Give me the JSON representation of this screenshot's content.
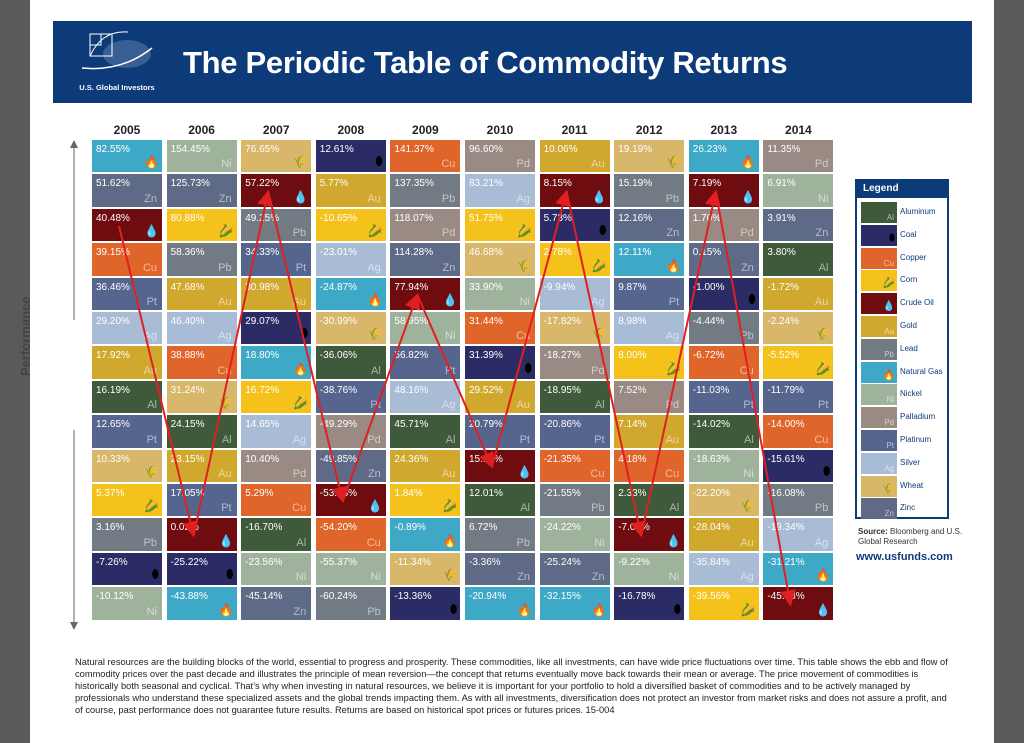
{
  "header": {
    "title": "The Periodic Table of Commodity Returns",
    "logo_text": "U.S. Global Investors"
  },
  "yaxis_label": "Performance",
  "legend": {
    "title": "Legend",
    "items": [
      {
        "sym": "Al",
        "name": "Aluminum",
        "color": "#3f5a3a",
        "icon": "",
        "icon_name": ""
      },
      {
        "sym": "",
        "name": "Coal",
        "color": "#2b2c66",
        "icon": "⬮",
        "icon_name": "coal-icon"
      },
      {
        "sym": "Cu",
        "name": "Copper",
        "color": "#e0652a",
        "icon": "",
        "icon_name": ""
      },
      {
        "sym": "",
        "name": "Corn",
        "color": "#f4c21b",
        "icon": "🌽",
        "icon_name": "corn-icon"
      },
      {
        "sym": "",
        "name": "Crude Oil",
        "color": "#6e0c0f",
        "icon": "💧",
        "icon_name": "oil-drop-icon"
      },
      {
        "sym": "Au",
        "name": "Gold",
        "color": "#d0a82e",
        "icon": "",
        "icon_name": ""
      },
      {
        "sym": "Pb",
        "name": "Lead",
        "color": "#727b84",
        "icon": "",
        "icon_name": ""
      },
      {
        "sym": "",
        "name": "Natural Gas",
        "color": "#3ea9c7",
        "icon": "🔥",
        "icon_name": "flame-icon"
      },
      {
        "sym": "Ni",
        "name": "Nickel",
        "color": "#9fb39c",
        "icon": "",
        "icon_name": ""
      },
      {
        "sym": "Pd",
        "name": "Palladium",
        "color": "#9a8a84",
        "icon": "",
        "icon_name": ""
      },
      {
        "sym": "Pt",
        "name": "Platinum",
        "color": "#56658e",
        "icon": "",
        "icon_name": ""
      },
      {
        "sym": "Ag",
        "name": "Silver",
        "color": "#a9bcd5",
        "icon": "",
        "icon_name": ""
      },
      {
        "sym": "",
        "name": "Wheat",
        "color": "#d8b66a",
        "icon": "🌾",
        "icon_name": "wheat-icon"
      },
      {
        "sym": "Zn",
        "name": "Zinc",
        "color": "#5e6a86",
        "icon": "",
        "icon_name": ""
      }
    ]
  },
  "source": {
    "label": "Source:",
    "text": "Bloomberg and U.S. Global Research"
  },
  "url": "www.usfunds.com",
  "footnote": "Natural resources are the building blocks of the world, essential to progress and prosperity. These commodities, like all investments, can have wide price fluctuations over time. This table shows the ebb and flow of commodity prices over the past decade and illustrates the principle of mean reversion—the concept that returns eventually move back towards their mean or average. The price movement of commodities is historically both seasonal and cyclical. That’s why when investing in natural resources, we believe it is important for your portfolio to hold a diversified basket of commodities and to be actively managed by professionals who understand these specialized assets and the global trends impacting them. As with all investments, diversification does not protect an investor from market risks and does not assure a profit, and of course, past performance does not guarantee future results. Returns are based on historical spot prices or futures prices. 15-004",
  "colors": {
    "Aluminum": "#3f5a3a",
    "Coal": "#2b2c66",
    "Copper": "#e0652a",
    "Corn": "#f4c21b",
    "Crude Oil": "#6e0c0f",
    "Gold": "#d0a82e",
    "Lead": "#727b84",
    "Natural Gas": "#3ea9c7",
    "Nickel": "#9fb39c",
    "Palladium": "#9a8a84",
    "Platinum": "#56658e",
    "Silver": "#a9bcd5",
    "Wheat": "#d8b66a",
    "Zinc": "#5e6a86",
    "arrow": "#e02020"
  },
  "chart_data": {
    "type": "table",
    "title": "The Periodic Table of Commodity Returns",
    "ylabel": "Performance",
    "highlight_series": "Crude Oil",
    "years": [
      {
        "year": "2005",
        "cells": [
          {
            "c": "Natural Gas",
            "v": "82.55%"
          },
          {
            "c": "Zinc",
            "v": "51.62%"
          },
          {
            "c": "Crude Oil",
            "v": "40.48%"
          },
          {
            "c": "Copper",
            "v": "39.15%"
          },
          {
            "c": "Platinum",
            "v": "36.46%"
          },
          {
            "c": "Silver",
            "v": "29.20%"
          },
          {
            "c": "Gold",
            "v": "17.92%"
          },
          {
            "c": "Aluminum",
            "v": "16.19%"
          },
          {
            "c": "Platinum",
            "v": "12.65%"
          },
          {
            "c": "Wheat",
            "v": "10.33%"
          },
          {
            "c": "Corn",
            "v": "5.37%"
          },
          {
            "c": "Lead",
            "v": "3.16%"
          },
          {
            "c": "Coal",
            "v": "-7.26%"
          },
          {
            "c": "Nickel",
            "v": "-10.12%"
          }
        ]
      },
      {
        "year": "2006",
        "cells": [
          {
            "c": "Nickel",
            "v": "154.45%"
          },
          {
            "c": "Zinc",
            "v": "125.73%"
          },
          {
            "c": "Corn",
            "v": "80.88%"
          },
          {
            "c": "Lead",
            "v": "58.36%"
          },
          {
            "c": "Gold",
            "v": "47.68%"
          },
          {
            "c": "Silver",
            "v": "46.40%"
          },
          {
            "c": "Copper",
            "v": "38.88%"
          },
          {
            "c": "Wheat",
            "v": "31.24%"
          },
          {
            "c": "Aluminum",
            "v": "24.15%"
          },
          {
            "c": "Gold",
            "v": "23.15%"
          },
          {
            "c": "Platinum",
            "v": "17.05%"
          },
          {
            "c": "Crude Oil",
            "v": "0.02%"
          },
          {
            "c": "Coal",
            "v": "-25.22%"
          },
          {
            "c": "Natural Gas",
            "v": "-43.88%"
          }
        ]
      },
      {
        "year": "2007",
        "cells": [
          {
            "c": "Wheat",
            "v": "76.65%"
          },
          {
            "c": "Crude Oil",
            "v": "57.22%"
          },
          {
            "c": "Lead",
            "v": "49.25%"
          },
          {
            "c": "Platinum",
            "v": "34.33%"
          },
          {
            "c": "Gold",
            "v": "30.98%"
          },
          {
            "c": "Coal",
            "v": "29.07%"
          },
          {
            "c": "Natural Gas",
            "v": "18.80%"
          },
          {
            "c": "Corn",
            "v": "16.72%"
          },
          {
            "c": "Silver",
            "v": "14.65%"
          },
          {
            "c": "Palladium",
            "v": "10.40%"
          },
          {
            "c": "Copper",
            "v": "5.29%"
          },
          {
            "c": "Aluminum",
            "v": "-16.70%"
          },
          {
            "c": "Nickel",
            "v": "-23.56%"
          },
          {
            "c": "Zinc",
            "v": "-45.14%"
          }
        ]
      },
      {
        "year": "2008",
        "cells": [
          {
            "c": "Coal",
            "v": "12.61%"
          },
          {
            "c": "Gold",
            "v": "5.77%"
          },
          {
            "c": "Corn",
            "v": "-10.65%"
          },
          {
            "c": "Silver",
            "v": "-23.01%"
          },
          {
            "c": "Natural Gas",
            "v": "-24.87%"
          },
          {
            "c": "Wheat",
            "v": "-30.99%"
          },
          {
            "c": "Aluminum",
            "v": "-36.06%"
          },
          {
            "c": "Platinum",
            "v": "-38.76%"
          },
          {
            "c": "Palladium",
            "v": "-49.29%"
          },
          {
            "c": "Zinc",
            "v": "-49.85%"
          },
          {
            "c": "Crude Oil",
            "v": "-53.53%"
          },
          {
            "c": "Copper",
            "v": "-54.20%"
          },
          {
            "c": "Nickel",
            "v": "-55.37%"
          },
          {
            "c": "Lead",
            "v": "-60.24%"
          }
        ]
      },
      {
        "year": "2009",
        "cells": [
          {
            "c": "Copper",
            "v": "141.37%"
          },
          {
            "c": "Lead",
            "v": "137.35%"
          },
          {
            "c": "Palladium",
            "v": "118.07%"
          },
          {
            "c": "Zinc",
            "v": "114.28%"
          },
          {
            "c": "Crude Oil",
            "v": "77.94%"
          },
          {
            "c": "Nickel",
            "v": "58.95%"
          },
          {
            "c": "Platinum",
            "v": "56.82%"
          },
          {
            "c": "Silver",
            "v": "48.16%"
          },
          {
            "c": "Aluminum",
            "v": "45.71%"
          },
          {
            "c": "Gold",
            "v": "24.36%"
          },
          {
            "c": "Corn",
            "v": "1.84%"
          },
          {
            "c": "Natural Gas",
            "v": "-0.89%"
          },
          {
            "c": "Wheat",
            "v": "-11.34%"
          },
          {
            "c": "Coal",
            "v": "-13.36%"
          }
        ]
      },
      {
        "year": "2010",
        "cells": [
          {
            "c": "Palladium",
            "v": "96.60%"
          },
          {
            "c": "Silver",
            "v": "83.21%"
          },
          {
            "c": "Corn",
            "v": "51.75%"
          },
          {
            "c": "Wheat",
            "v": "46.68%"
          },
          {
            "c": "Nickel",
            "v": "33.90%"
          },
          {
            "c": "Copper",
            "v": "31.44%"
          },
          {
            "c": "Coal",
            "v": "31.39%"
          },
          {
            "c": "Gold",
            "v": "29.52%"
          },
          {
            "c": "Platinum",
            "v": "20.79%"
          },
          {
            "c": "Crude Oil",
            "v": "15.15%"
          },
          {
            "c": "Aluminum",
            "v": "12.01%"
          },
          {
            "c": "Lead",
            "v": "6.72%"
          },
          {
            "c": "Zinc",
            "v": "-3.36%"
          },
          {
            "c": "Natural Gas",
            "v": "-20.94%"
          }
        ]
      },
      {
        "year": "2011",
        "cells": [
          {
            "c": "Gold",
            "v": "10.06%"
          },
          {
            "c": "Crude Oil",
            "v": "8.15%"
          },
          {
            "c": "Coal",
            "v": "5.73%"
          },
          {
            "c": "Corn",
            "v": "2.78%"
          },
          {
            "c": "Silver",
            "v": "-9.94%"
          },
          {
            "c": "Wheat",
            "v": "-17.82%"
          },
          {
            "c": "Palladium",
            "v": "-18.27%"
          },
          {
            "c": "Aluminum",
            "v": "-18.95%"
          },
          {
            "c": "Platinum",
            "v": "-20.86%"
          },
          {
            "c": "Copper",
            "v": "-21.35%"
          },
          {
            "c": "Lead",
            "v": "-21.55%"
          },
          {
            "c": "Nickel",
            "v": "-24.22%"
          },
          {
            "c": "Zinc",
            "v": "-25.24%"
          },
          {
            "c": "Natural Gas",
            "v": "-32.15%"
          }
        ]
      },
      {
        "year": "2012",
        "cells": [
          {
            "c": "Wheat",
            "v": "19.19%"
          },
          {
            "c": "Lead",
            "v": "15.19%"
          },
          {
            "c": "Zinc",
            "v": "12.16%"
          },
          {
            "c": "Natural Gas",
            "v": "12.11%"
          },
          {
            "c": "Platinum",
            "v": "9.87%"
          },
          {
            "c": "Silver",
            "v": "8.98%"
          },
          {
            "c": "Corn",
            "v": "8.00%"
          },
          {
            "c": "Palladium",
            "v": "7.52%"
          },
          {
            "c": "Gold",
            "v": "7.14%"
          },
          {
            "c": "Copper",
            "v": "4.18%"
          },
          {
            "c": "Aluminum",
            "v": "2.33%"
          },
          {
            "c": "Crude Oil",
            "v": "-7.09%"
          },
          {
            "c": "Nickel",
            "v": "-9.22%"
          },
          {
            "c": "Coal",
            "v": "-16.78%"
          }
        ]
      },
      {
        "year": "2013",
        "cells": [
          {
            "c": "Natural Gas",
            "v": "26.23%"
          },
          {
            "c": "Crude Oil",
            "v": "7.19%"
          },
          {
            "c": "Palladium",
            "v": "1.70%"
          },
          {
            "c": "Zinc",
            "v": "0.15%"
          },
          {
            "c": "Coal",
            "v": "-1.00%"
          },
          {
            "c": "Lead",
            "v": "-4.44%"
          },
          {
            "c": "Copper",
            "v": "-6.72%"
          },
          {
            "c": "Platinum",
            "v": "-11.03%"
          },
          {
            "c": "Aluminum",
            "v": "-14.02%"
          },
          {
            "c": "Nickel",
            "v": "-18.63%"
          },
          {
            "c": "Wheat",
            "v": "-22.20%"
          },
          {
            "c": "Gold",
            "v": "-28.04%"
          },
          {
            "c": "Silver",
            "v": "-35.84%"
          },
          {
            "c": "Corn",
            "v": "-39.56%"
          }
        ]
      },
      {
        "year": "2014",
        "cells": [
          {
            "c": "Palladium",
            "v": "11.35%"
          },
          {
            "c": "Nickel",
            "v": "6.91%"
          },
          {
            "c": "Zinc",
            "v": "3.91%"
          },
          {
            "c": "Aluminum",
            "v": "3.80%"
          },
          {
            "c": "Gold",
            "v": "-1.72%"
          },
          {
            "c": "Wheat",
            "v": "-2.24%"
          },
          {
            "c": "Corn",
            "v": "-5.52%"
          },
          {
            "c": "Platinum",
            "v": "-11.79%"
          },
          {
            "c": "Copper",
            "v": "-14.00%"
          },
          {
            "c": "Coal",
            "v": "-15.61%"
          },
          {
            "c": "Lead",
            "v": "-16.08%"
          },
          {
            "c": "Silver",
            "v": "-19.34%"
          },
          {
            "c": "Natural Gas",
            "v": "-31.21%"
          },
          {
            "c": "Crude Oil",
            "v": "-45.58%"
          }
        ]
      }
    ]
  }
}
